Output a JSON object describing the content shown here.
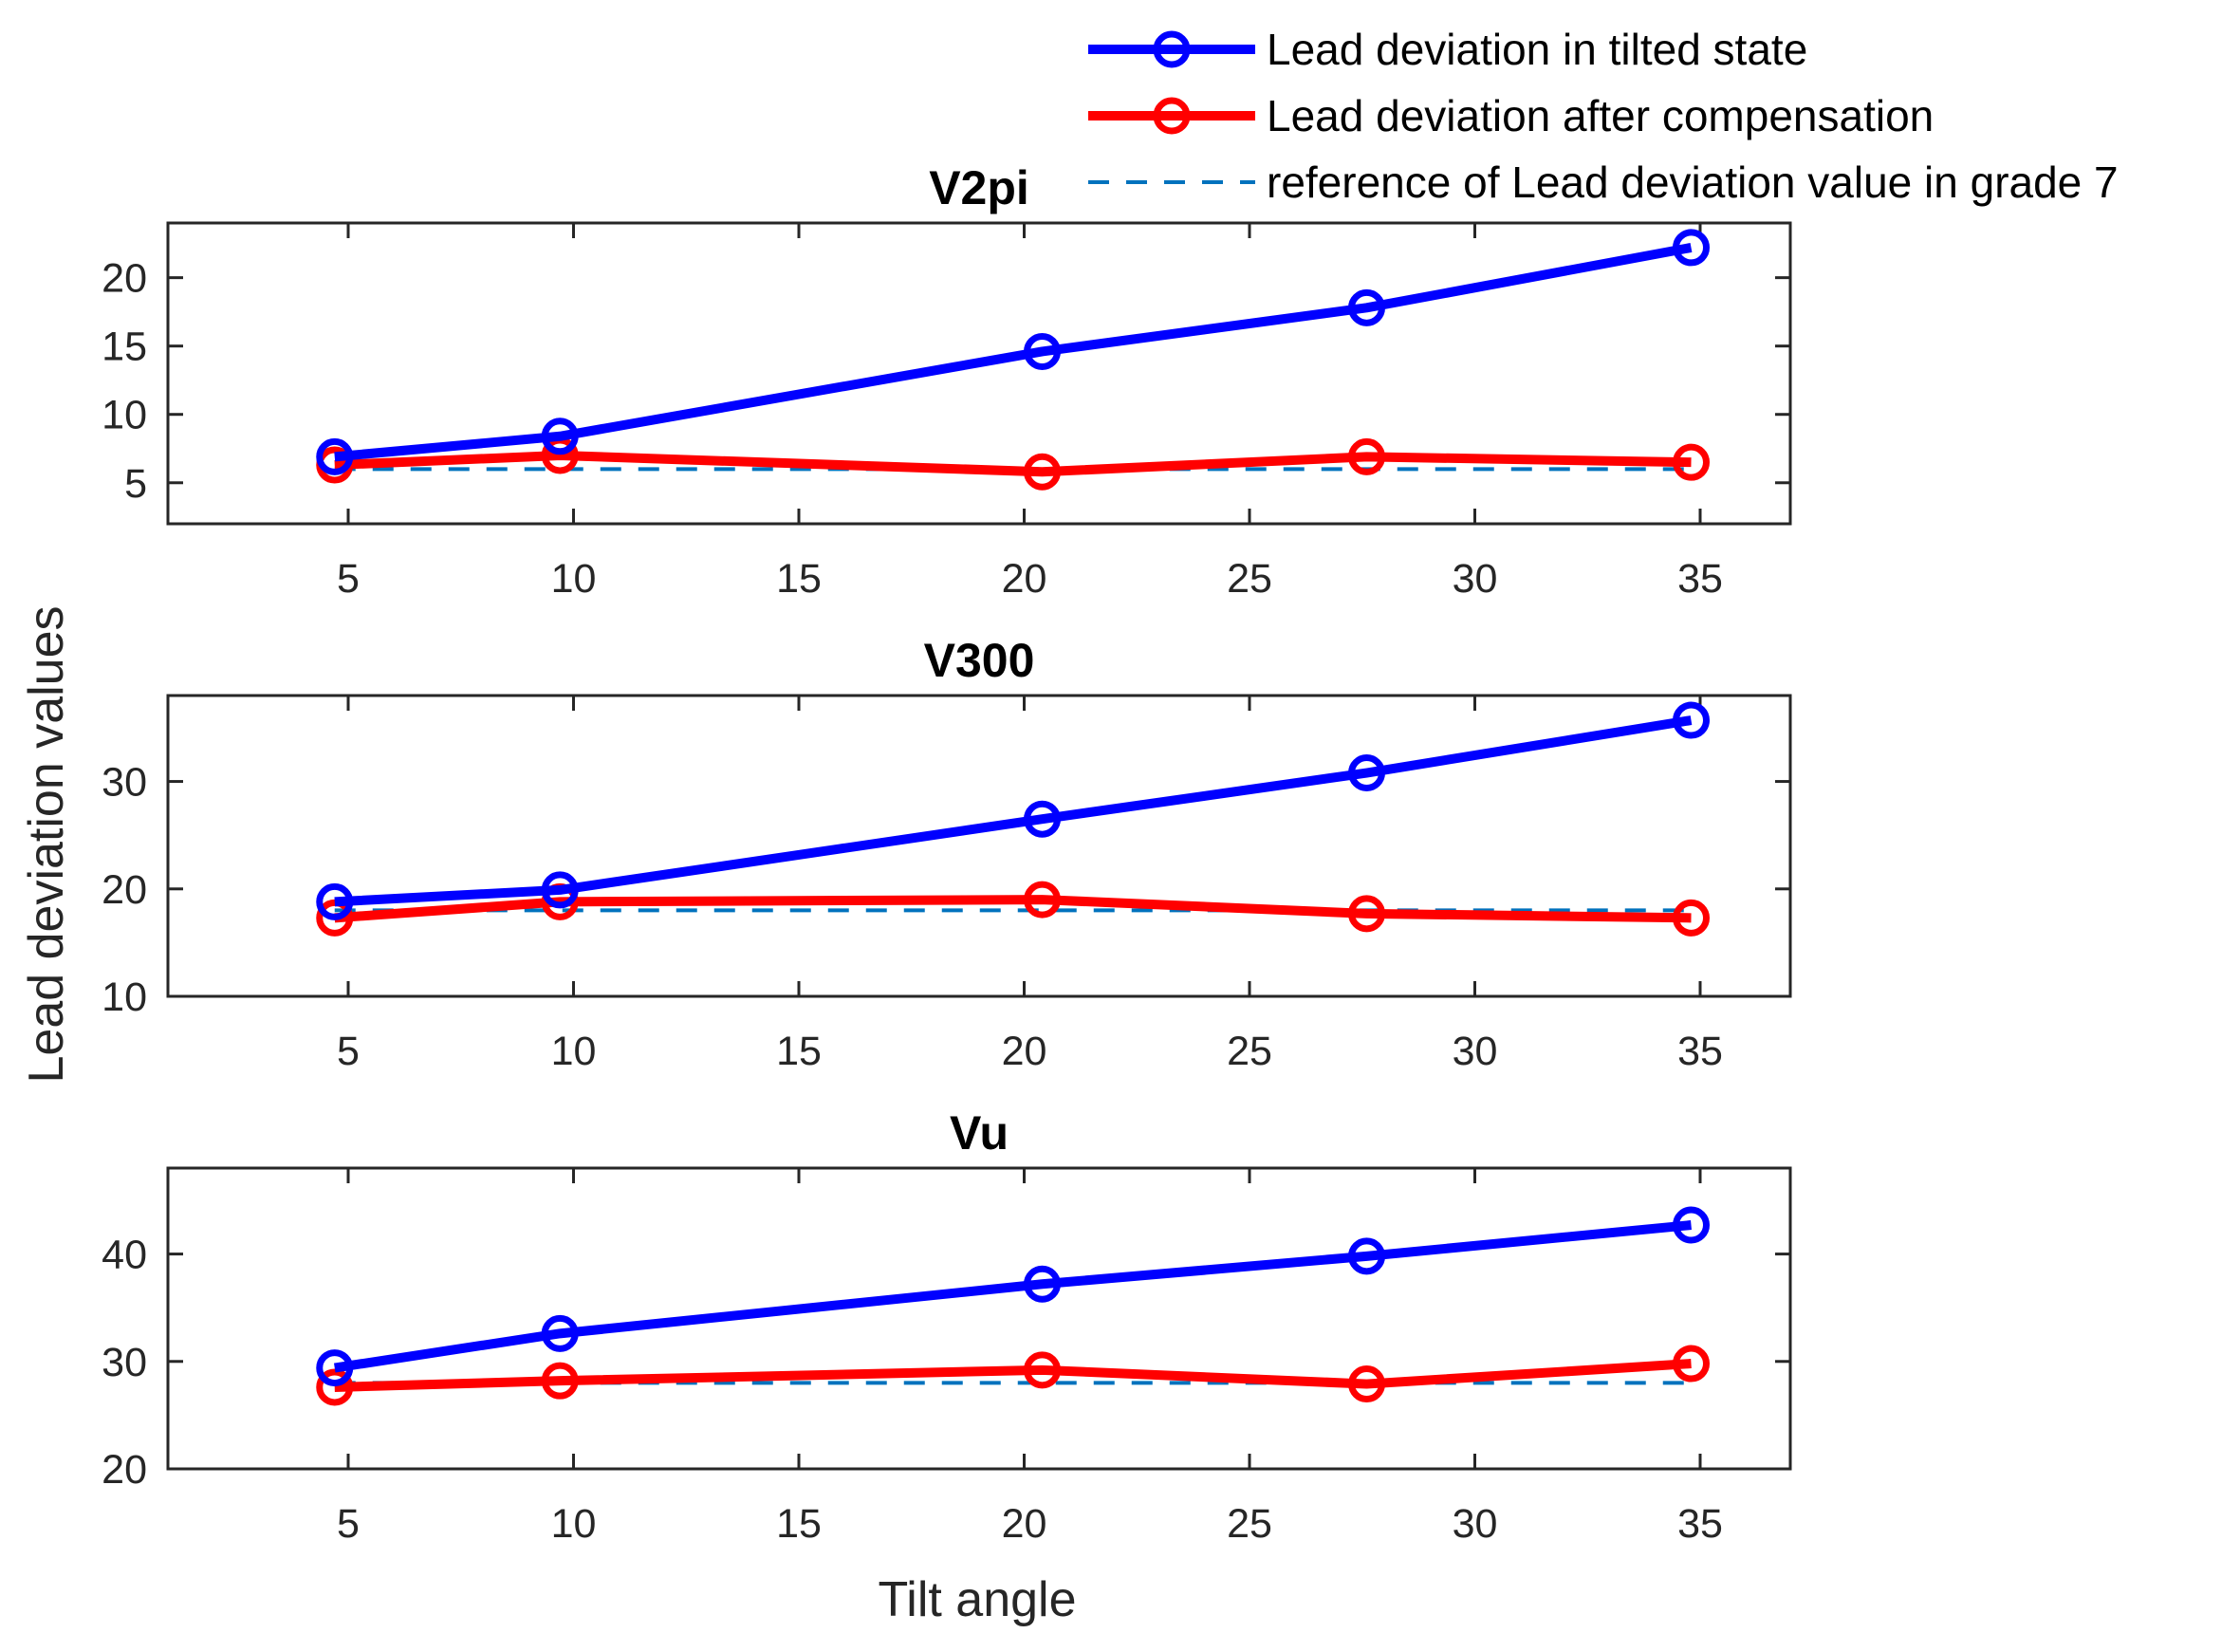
{
  "chart_data": {
    "type": "line",
    "ylabel": "Lead deviation values",
    "xlabel": "Tilt angle",
    "legend": {
      "placement": "top-right",
      "entries": [
        {
          "name": "Lead deviation in tilted state",
          "color": "#0000ff",
          "style": "solid-marker"
        },
        {
          "name": "Lead deviation after compensation",
          "color": "#ff0000",
          "style": "solid-marker"
        },
        {
          "name": "reference of Lead deviation value in grade 7",
          "color": "#0072bd",
          "style": "dashed"
        }
      ]
    },
    "panels": [
      {
        "title": "V2pi",
        "xlim": [
          1,
          37
        ],
        "ylim": [
          2,
          24
        ],
        "xticks": [
          5,
          10,
          15,
          20,
          25,
          30,
          35
        ],
        "yticks": [
          5,
          10,
          15,
          20
        ],
        "x": [
          4.7,
          9.7,
          20.4,
          27.6,
          34.8
        ],
        "series": [
          {
            "name": "Lead deviation in tilted state",
            "values": [
              6.9,
              8.4,
              14.6,
              17.8,
              22.2
            ]
          },
          {
            "name": "Lead deviation after compensation",
            "values": [
              6.3,
              7.0,
              5.8,
              6.9,
              6.5
            ]
          },
          {
            "name": "reference of Lead deviation value in grade 7",
            "values": [
              6.0,
              6.0,
              6.0,
              6.0,
              6.0
            ]
          }
        ]
      },
      {
        "title": "V300",
        "xlim": [
          1,
          37
        ],
        "ylim": [
          10,
          38
        ],
        "xticks": [
          5,
          10,
          15,
          20,
          25,
          30,
          35
        ],
        "yticks": [
          10,
          20,
          30
        ],
        "x": [
          4.7,
          9.7,
          20.4,
          27.6,
          34.8
        ],
        "series": [
          {
            "name": "Lead deviation in tilted state",
            "values": [
              18.8,
              19.9,
              26.5,
              30.8,
              35.7
            ]
          },
          {
            "name": "Lead deviation after compensation",
            "values": [
              17.3,
              18.8,
              19.0,
              17.7,
              17.3
            ]
          },
          {
            "name": "reference of Lead deviation value in grade 7",
            "values": [
              18.0,
              18.0,
              18.0,
              18.0,
              18.0
            ]
          }
        ]
      },
      {
        "title": "Vu",
        "xlim": [
          1,
          37
        ],
        "ylim": [
          20,
          48
        ],
        "xticks": [
          5,
          10,
          15,
          20,
          25,
          30,
          35
        ],
        "yticks": [
          20,
          30,
          40
        ],
        "x": [
          4.7,
          9.7,
          20.4,
          27.6,
          34.8
        ],
        "series": [
          {
            "name": "Lead deviation in tilted state",
            "values": [
              29.4,
              32.6,
              37.2,
              39.8,
              42.7
            ]
          },
          {
            "name": "Lead deviation after compensation",
            "values": [
              27.6,
              28.2,
              29.2,
              27.9,
              29.8
            ]
          },
          {
            "name": "reference of Lead deviation value in grade 7",
            "values": [
              28.0,
              28.0,
              28.0,
              28.0,
              28.0
            ]
          }
        ]
      }
    ]
  }
}
